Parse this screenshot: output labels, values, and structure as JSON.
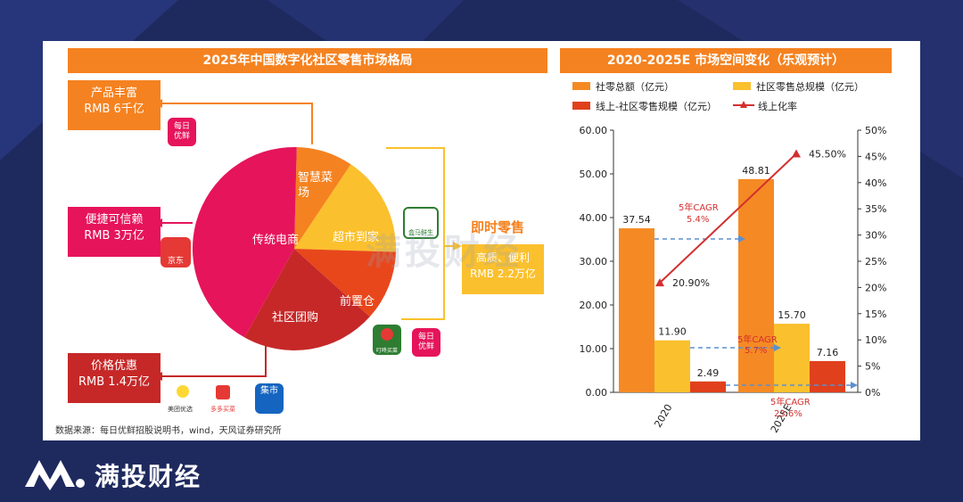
{
  "left_panel": {
    "title": "2025年中国数字化社区零售市场格局",
    "boxes": {
      "product_rich": {
        "line1": "产品丰富",
        "line2": "RMB 6千亿"
      },
      "convenient": {
        "line1": "便捷可信赖",
        "line2": "RMB 3万亿"
      },
      "price": {
        "line1": "价格优惠",
        "line2": "RMB 1.4万亿"
      },
      "instant_quality": {
        "line1": "高质、便利",
        "line2": "RMB 2.2万亿"
      }
    },
    "instant_retail_label": "即时零售",
    "pie": {
      "slices": [
        {
          "label": "智慧菜场",
          "color": "#f58220"
        },
        {
          "label": "超市到家",
          "color": "#fbc02d"
        },
        {
          "label": "前置仓",
          "color": "#e8471c"
        },
        {
          "label": "社区团购",
          "color": "#c62828"
        },
        {
          "label": "传统电商",
          "color": "#e6145a"
        }
      ]
    },
    "logos": {
      "meiri1": "每日\n优鲜",
      "jd": "京东",
      "meituan": "美团优选",
      "duoduo": "多多买菜",
      "jishi": "集市",
      "hema": "盒马鲜生",
      "dingdong": "叮咚买菜",
      "meiri2": "每日\n优鲜"
    },
    "source": "数据来源：每日优鲜招股说明书，wind，天风证券研究所"
  },
  "right_panel": {
    "title": "2020-2025E 市场空间变化（乐观预计）",
    "legend": {
      "s1": "社零总额（亿元）",
      "s2": "社区零售总规模（亿元）",
      "s3": "线上-社区零售规模（亿元）",
      "s4": "线上化率"
    },
    "cagr": [
      {
        "line1": "5年CAGR",
        "line2": "5.4%"
      },
      {
        "line1": "5年CAGR",
        "line2": "5.7%"
      },
      {
        "line1": "5年CAGR",
        "line2": "23.6%"
      }
    ]
  },
  "chart_data": {
    "type": "bar",
    "title": "2020-2025E 市场空间变化（乐观预计）",
    "categories": [
      "2020",
      "2025E"
    ],
    "series": [
      {
        "name": "社零总额（亿元）",
        "values": [
          37.54,
          48.81
        ],
        "color": "#f58a24"
      },
      {
        "name": "社区零售总规模（亿元）",
        "values": [
          11.9,
          15.7
        ],
        "color": "#fbc02d"
      },
      {
        "name": "线上-社区零售规模（亿元）",
        "values": [
          2.49,
          7.16
        ],
        "color": "#e0401c"
      }
    ],
    "line_series": {
      "name": "线上化率",
      "values": [
        20.9,
        45.5
      ],
      "labels": [
        "20.90%",
        "45.50%"
      ],
      "color": "#d32f2f"
    },
    "value_labels": [
      [
        "37.54",
        "48.81"
      ],
      [
        "11.90",
        "15.70"
      ],
      [
        "2.49",
        "7.16"
      ]
    ],
    "y_left": {
      "ylim": [
        0,
        60
      ],
      "ticks": [
        "0.00",
        "10.00",
        "20.00",
        "30.00",
        "40.00",
        "50.00",
        "60.00"
      ]
    },
    "y_right": {
      "ylim": [
        0,
        50
      ],
      "ticks": [
        "0%",
        "5%",
        "10%",
        "15%",
        "20%",
        "25%",
        "30%",
        "35%",
        "40%",
        "45%",
        "50%"
      ]
    }
  },
  "footer": {
    "brand": "满投财经"
  },
  "watermark": "满投财经"
}
